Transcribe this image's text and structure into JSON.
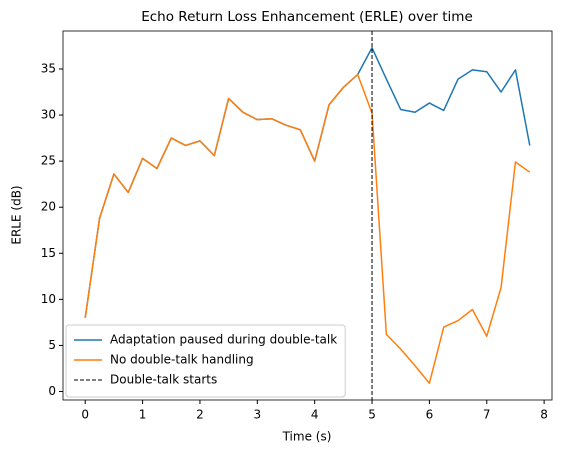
{
  "chart_data": {
    "type": "line",
    "title": "Echo Return Loss Enhancement (ERLE) over time",
    "xlabel": "Time (s)",
    "ylabel": "ERLE (dB)",
    "x": [
      0,
      0.25,
      0.5,
      0.75,
      1,
      1.25,
      1.5,
      1.75,
      2,
      2.25,
      2.5,
      2.75,
      3,
      3.25,
      3.5,
      3.75,
      4,
      4.25,
      4.5,
      4.75,
      5,
      5.25,
      5.5,
      5.75,
      6,
      6.25,
      6.5,
      6.75,
      7,
      7.25,
      7.5,
      7.75
    ],
    "series": [
      {
        "name": "Adaptation paused during double-talk",
        "color": "#1f77b4",
        "values": [
          8.0,
          18.8,
          23.6,
          21.6,
          25.3,
          24.2,
          27.5,
          26.7,
          27.2,
          25.6,
          31.8,
          30.3,
          29.5,
          29.6,
          28.9,
          28.4,
          25.0,
          31.1,
          33.0,
          34.4,
          37.3,
          33.9,
          30.6,
          30.3,
          31.3,
          30.5,
          33.9,
          34.9,
          34.7,
          32.5,
          34.9,
          26.7
        ]
      },
      {
        "name": "No double-talk handling",
        "color": "#ff7f0e",
        "values": [
          8.0,
          18.8,
          23.6,
          21.6,
          25.3,
          24.2,
          27.5,
          26.7,
          27.2,
          25.6,
          31.8,
          30.3,
          29.5,
          29.6,
          28.9,
          28.4,
          25.0,
          31.1,
          33.0,
          34.4,
          30.2,
          6.2,
          4.6,
          2.8,
          0.9,
          7.0,
          7.7,
          8.9,
          6.0,
          11.3,
          24.9,
          23.8
        ]
      }
    ],
    "vlines": [
      {
        "x": 5,
        "name": "Double-talk starts",
        "color": "#000000"
      }
    ],
    "xlim": [
      -0.3875,
      8.1375
    ],
    "xticks": [
      0,
      1,
      2,
      3,
      4,
      5,
      6,
      7,
      8
    ],
    "ylim": [
      -0.92,
      39.12
    ],
    "yticks": [
      0,
      5,
      10,
      15,
      20,
      25,
      30,
      35
    ],
    "grid": false,
    "legend": "lower left"
  }
}
